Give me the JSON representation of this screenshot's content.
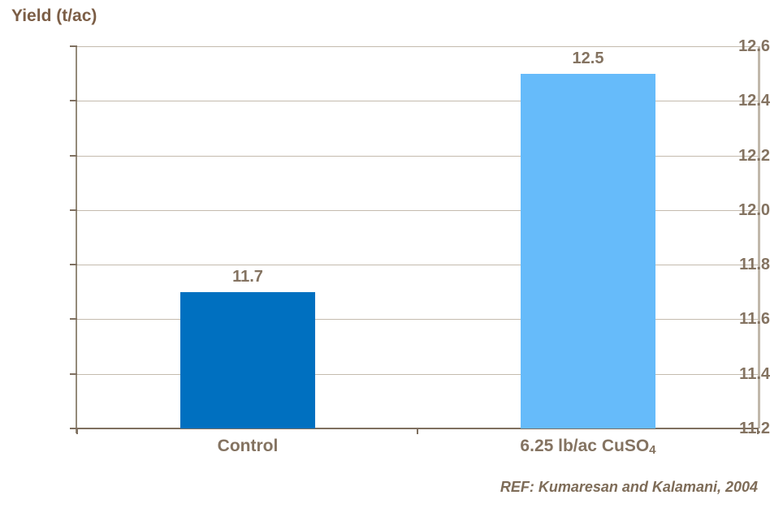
{
  "chart_data": {
    "type": "bar",
    "title": "Yield (t/ac)",
    "ylabel": "Yield (t/ac)",
    "xlabel": "",
    "categories": [
      {
        "text": "Control",
        "sub": ""
      },
      {
        "text": "6.25 lb/ac CuSO",
        "sub": "4"
      }
    ],
    "values": [
      11.7,
      12.5
    ],
    "value_labels": [
      "11.7",
      "12.5"
    ],
    "bar_colors": [
      "#0070C0",
      "#66BBFA"
    ],
    "ylim": [
      11.2,
      12.6
    ],
    "ytick_step": 0.2,
    "ytick_labels": [
      "11.2",
      "11.4",
      "11.6",
      "11.8",
      "12.0",
      "12.2",
      "12.4",
      "12.6"
    ],
    "grid": true,
    "legend_position": "none",
    "note": "REF: Kumaresan and Kalamani, 2004",
    "colors": {
      "title_text": "#7C5E46",
      "axis_text": "#847361",
      "note_text": "#7E6C58",
      "gridline": "#C4BBAE",
      "y_axis_line": "#948A7A",
      "x_axis_line": "#7F7060",
      "plot_right_border": "#C1B8AB",
      "background": "#FFFFFF"
    }
  }
}
